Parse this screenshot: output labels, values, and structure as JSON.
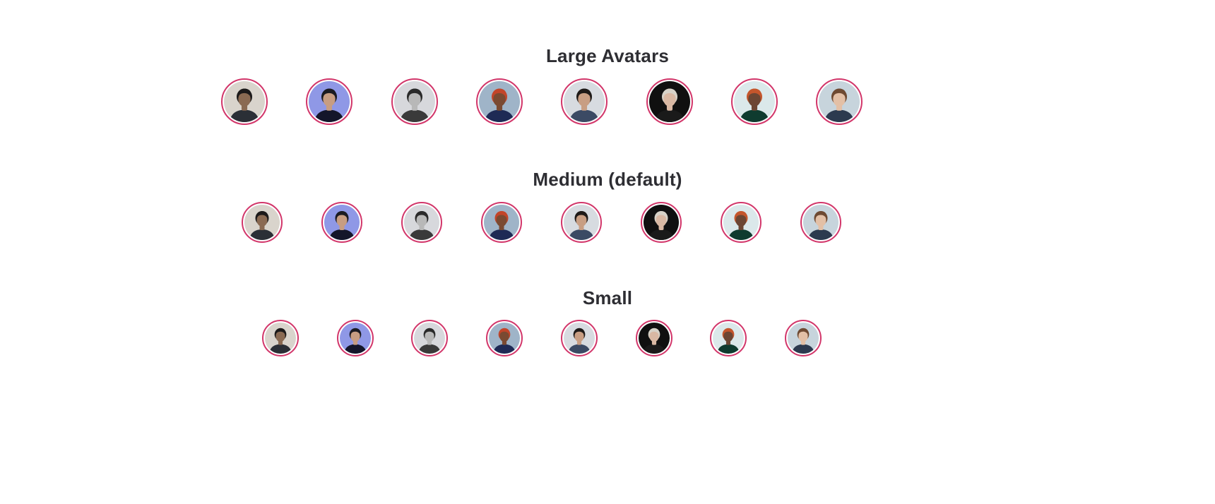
{
  "accent_color": "#d2366a",
  "sections": [
    {
      "title": "Large Avatars"
    },
    {
      "title": "Medium (default)"
    },
    {
      "title": "Small"
    }
  ],
  "avatars": [
    {
      "icon": "person-avatar-icon",
      "bg": "#d9d4cc",
      "skin": "#8a6a52",
      "hair": "#1c1a1a",
      "shirt": "#2b2f36"
    },
    {
      "icon": "person-avatar-icon",
      "bg": "#8f98e6",
      "skin": "#c79d82",
      "hair": "#1b1b22",
      "shirt": "#14162a"
    },
    {
      "icon": "person-avatar-icon",
      "bg": "#d7d8dc",
      "skin": "#b8b8b8",
      "hair": "#2a2a2a",
      "shirt": "#3a3a3a"
    },
    {
      "icon": "person-avatar-icon",
      "bg": "#9fb4c8",
      "skin": "#7a4a32",
      "hair": "#c2452a",
      "shirt": "#1e2a55"
    },
    {
      "icon": "person-avatar-icon",
      "bg": "#d7dbe0",
      "skin": "#c89e83",
      "hair": "#1e1a18",
      "shirt": "#3b4a64"
    },
    {
      "icon": "person-avatar-icon",
      "bg": "#101010",
      "skin": "#d9b8a3",
      "hair": "#d7d2c8",
      "shirt": "#1a1a1a"
    },
    {
      "icon": "person-avatar-icon",
      "bg": "#dbe8ea",
      "skin": "#6c4633",
      "hair": "#c4562c",
      "shirt": "#0f3b2f"
    },
    {
      "icon": "person-avatar-icon",
      "bg": "#c7d4dc",
      "skin": "#e3c0a6",
      "hair": "#6e4a32",
      "shirt": "#2c3a4f"
    }
  ]
}
